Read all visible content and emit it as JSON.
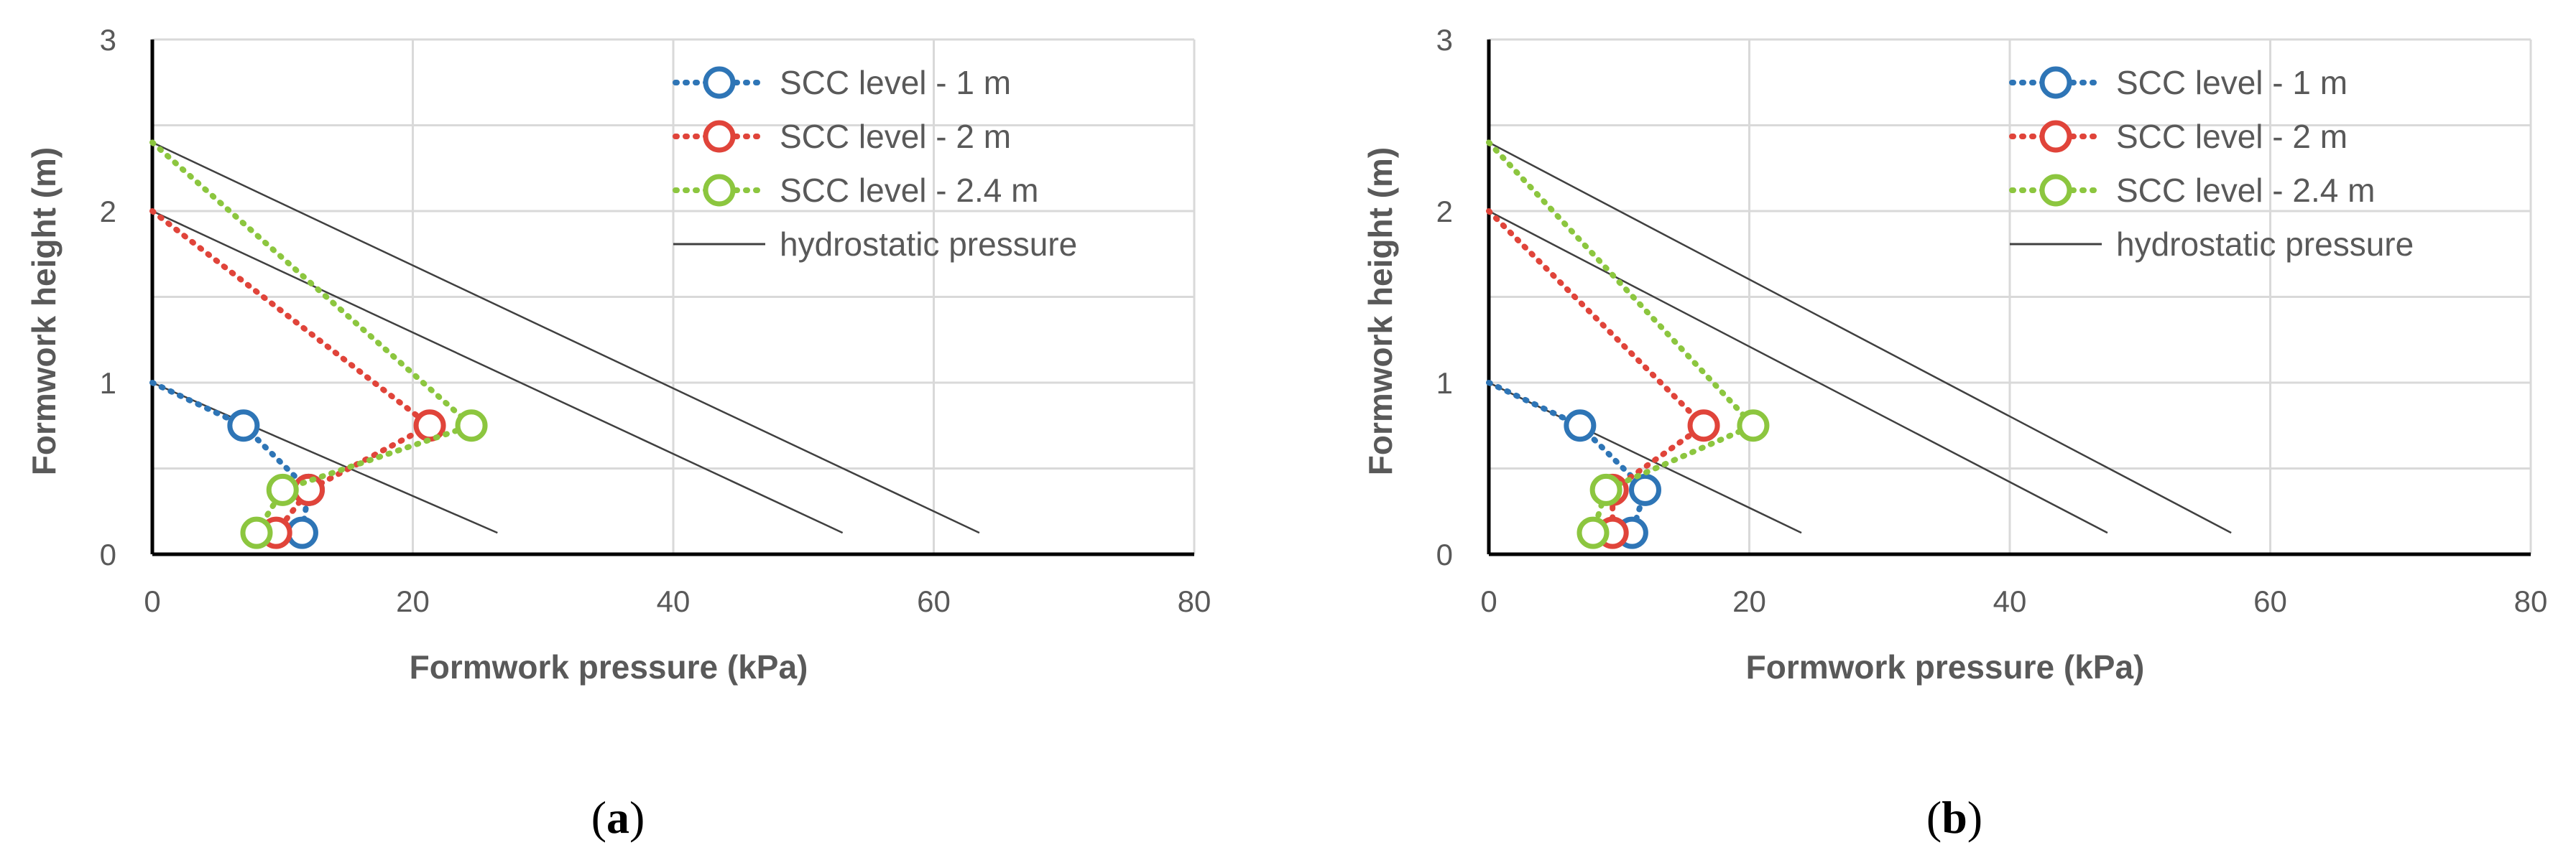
{
  "figure": {
    "caption_a": "a",
    "caption_b": "b"
  },
  "colors": {
    "scc_1m": "#2e75b6",
    "scc_2m": "#e0443a",
    "scc_24m": "#8cc63f",
    "hydrostatic": "#404040",
    "grid": "#d9d9d9",
    "axis": "#000000"
  },
  "chart_data": [
    {
      "type": "scatter",
      "panel": "a",
      "xlabel": "Formwork pressure (kPa)",
      "ylabel": "Formwork height (m)",
      "xlim": [
        0,
        80
      ],
      "ylim": [
        0,
        3
      ],
      "xticks": [
        "0",
        "20",
        "40",
        "60",
        "80"
      ],
      "yticks": [
        "0",
        "1",
        "2",
        "3"
      ],
      "legend_position": "top-right",
      "series": [
        {
          "name": "SCC level - 1 m",
          "color_key": "scc_1m",
          "style": "dotted-circles",
          "points": [
            [
              0,
              1.0
            ],
            [
              7,
              0.75
            ],
            [
              12,
              0.375
            ],
            [
              11.5,
              0.125
            ]
          ]
        },
        {
          "name": "SCC level - 2 m",
          "color_key": "scc_2m",
          "style": "dotted-circles",
          "points": [
            [
              0,
              2.0
            ],
            [
              21.3,
              0.75
            ],
            [
              12,
              0.375
            ],
            [
              9.5,
              0.125
            ]
          ]
        },
        {
          "name": "SCC level - 2.4 m",
          "color_key": "scc_24m",
          "style": "dotted-circles",
          "points": [
            [
              0,
              2.4
            ],
            [
              24.5,
              0.75
            ],
            [
              10,
              0.375
            ],
            [
              8,
              0.125
            ]
          ]
        },
        {
          "name": "hydrostatic pressure",
          "color_key": "hydrostatic",
          "style": "line",
          "lines": [
            [
              [
                0,
                1.0
              ],
              [
                26.5,
                0.125
              ]
            ],
            [
              [
                0,
                2.0
              ],
              [
                53,
                0.125
              ]
            ],
            [
              [
                0,
                2.4
              ],
              [
                63.5,
                0.125
              ]
            ]
          ]
        }
      ]
    },
    {
      "type": "scatter",
      "panel": "b",
      "xlabel": "Formwork pressure (kPa)",
      "ylabel": "Formwork height (m)",
      "xlim": [
        0,
        80
      ],
      "ylim": [
        0,
        3
      ],
      "xticks": [
        "0",
        "20",
        "40",
        "60",
        "80"
      ],
      "yticks": [
        "0",
        "1",
        "2",
        "3"
      ],
      "legend_position": "top-right",
      "series": [
        {
          "name": "SCC level - 1 m",
          "color_key": "scc_1m",
          "style": "dotted-circles",
          "points": [
            [
              0,
              1.0
            ],
            [
              7,
              0.75
            ],
            [
              12,
              0.375
            ],
            [
              11,
              0.125
            ]
          ]
        },
        {
          "name": "SCC level - 2 m",
          "color_key": "scc_2m",
          "style": "dotted-circles",
          "points": [
            [
              0,
              2.0
            ],
            [
              16.5,
              0.75
            ],
            [
              9.5,
              0.375
            ],
            [
              9.5,
              0.125
            ]
          ]
        },
        {
          "name": "SCC level - 2.4 m",
          "color_key": "scc_24m",
          "style": "dotted-circles",
          "points": [
            [
              0,
              2.4
            ],
            [
              20.3,
              0.75
            ],
            [
              9,
              0.375
            ],
            [
              8,
              0.125
            ]
          ]
        },
        {
          "name": "hydrostatic pressure",
          "color_key": "hydrostatic",
          "style": "line",
          "lines": [
            [
              [
                0,
                1.0
              ],
              [
                24,
                0.125
              ]
            ],
            [
              [
                0,
                2.0
              ],
              [
                47.5,
                0.125
              ]
            ],
            [
              [
                0,
                2.4
              ],
              [
                57,
                0.125
              ]
            ]
          ]
        }
      ]
    }
  ]
}
